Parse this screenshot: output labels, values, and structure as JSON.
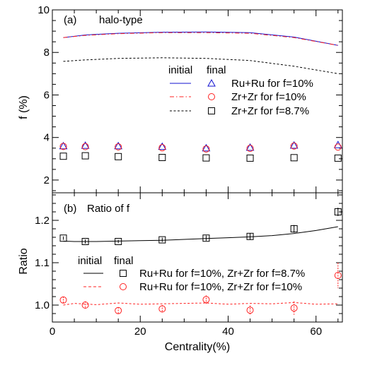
{
  "figure": {
    "x_axis_label": "Centrality(%)",
    "x_ticks": [
      "0",
      "20",
      "40",
      "60"
    ]
  },
  "chart_data": [
    {
      "type": "line",
      "panel_label": "(a)",
      "title": "halo-type",
      "ylabel": "f (%)",
      "xlim": [
        0,
        66
      ],
      "ylim": [
        1.4,
        10
      ],
      "y_ticks": [
        "2",
        "4",
        "6",
        "8",
        "10"
      ],
      "legend_headers": [
        "initial",
        "final"
      ],
      "legend_labels": [
        "Ru+Ru for f=10%",
        "Zr+Zr for f=10%",
        "Zr+Zr for f=8.7%"
      ],
      "x": [
        2.5,
        7.5,
        15,
        25,
        35,
        45,
        55,
        65
      ],
      "series": [
        {
          "name": "Ru+Ru for f=10%",
          "color": "#1010d0",
          "line_style": "solid",
          "marker": "triangle",
          "initial_x": [
            2.5,
            7.5,
            15,
            25,
            35,
            45,
            55,
            65
          ],
          "initial": [
            8.7,
            8.82,
            8.9,
            8.95,
            8.96,
            8.93,
            8.72,
            8.33
          ],
          "final": [
            3.6,
            3.62,
            3.6,
            3.57,
            3.5,
            3.53,
            3.63,
            3.65
          ]
        },
        {
          "name": "Zr+Zr for f=10%",
          "color": "#ff2020",
          "line_style": "dashdot",
          "marker": "circle",
          "initial_x": [
            2.5,
            7.5,
            15,
            25,
            35,
            45,
            55,
            65
          ],
          "initial": [
            8.7,
            8.8,
            8.88,
            8.93,
            8.93,
            8.9,
            8.7,
            8.33
          ],
          "final": [
            3.58,
            3.57,
            3.56,
            3.52,
            3.46,
            3.49,
            3.6,
            3.55
          ]
        },
        {
          "name": "Zr+Zr for f=8.7%",
          "color": "#000000",
          "line_style": "dashed",
          "marker": "square",
          "initial_x": [
            2.5,
            7.5,
            15,
            25,
            35,
            45,
            55,
            65
          ],
          "initial": [
            7.58,
            7.65,
            7.72,
            7.75,
            7.72,
            7.62,
            7.35,
            7.0
          ],
          "final": [
            3.12,
            3.14,
            3.1,
            3.06,
            3.04,
            3.03,
            3.05,
            3.03
          ]
        }
      ]
    },
    {
      "type": "line",
      "panel_label": "(b)",
      "title": "Ratio of f",
      "ylabel": "Ratio",
      "xlim": [
        0,
        66
      ],
      "ylim": [
        0.96,
        1.265
      ],
      "y_ticks": [
        "1.0",
        "1.1",
        "1.2"
      ],
      "legend_headers": [
        "initial",
        "final"
      ],
      "legend_labels": [
        "Ru+Ru for f=10%, Zr+Zr for f=8.7%",
        "Ru+Ru for f=10%, Zr+Zr for f=10%"
      ],
      "x": [
        2.5,
        7.5,
        15,
        25,
        35,
        45,
        55,
        65
      ],
      "series": [
        {
          "name": "Ru+Ru for f=10%, Zr+Zr for f=8.7%",
          "color": "#000000",
          "line_style": "solid",
          "marker": "square",
          "initial_x": [
            2.5,
            5,
            10,
            15,
            20,
            25,
            30,
            35,
            40,
            45,
            50,
            55,
            60,
            65
          ],
          "initial": [
            1.151,
            1.15,
            1.15,
            1.151,
            1.152,
            1.153,
            1.155,
            1.157,
            1.159,
            1.161,
            1.164,
            1.169,
            1.176,
            1.185
          ],
          "final": [
            1.158,
            1.15,
            1.15,
            1.154,
            1.158,
            1.162,
            1.18,
            1.22
          ],
          "final_err": [
            0.004,
            0.005,
            0.004,
            0.005,
            0.006,
            0.007,
            0.009,
            0.01
          ]
        },
        {
          "name": "Ru+Ru for f=10%, Zr+Zr for f=10%",
          "color": "#ff2020",
          "line_style": "dashed",
          "marker": "circle",
          "initial_x": [
            2.5,
            5,
            10,
            15,
            20,
            25,
            30,
            35,
            40,
            45,
            50,
            55,
            60,
            65
          ],
          "initial": [
            1.0,
            1.004,
            1.001,
            1.005,
            1.002,
            1.003,
            1.004,
            1.005,
            1.002,
            1.004,
            1.003,
            1.006,
            1.002,
            1.003
          ],
          "final": [
            1.012,
            1.0,
            0.987,
            0.991,
            1.013,
            0.988,
            0.993,
            1.07
          ],
          "final_err": [
            0.008,
            0.009,
            0.008,
            0.009,
            0.01,
            0.011,
            0.016,
            0.03
          ]
        }
      ]
    }
  ]
}
